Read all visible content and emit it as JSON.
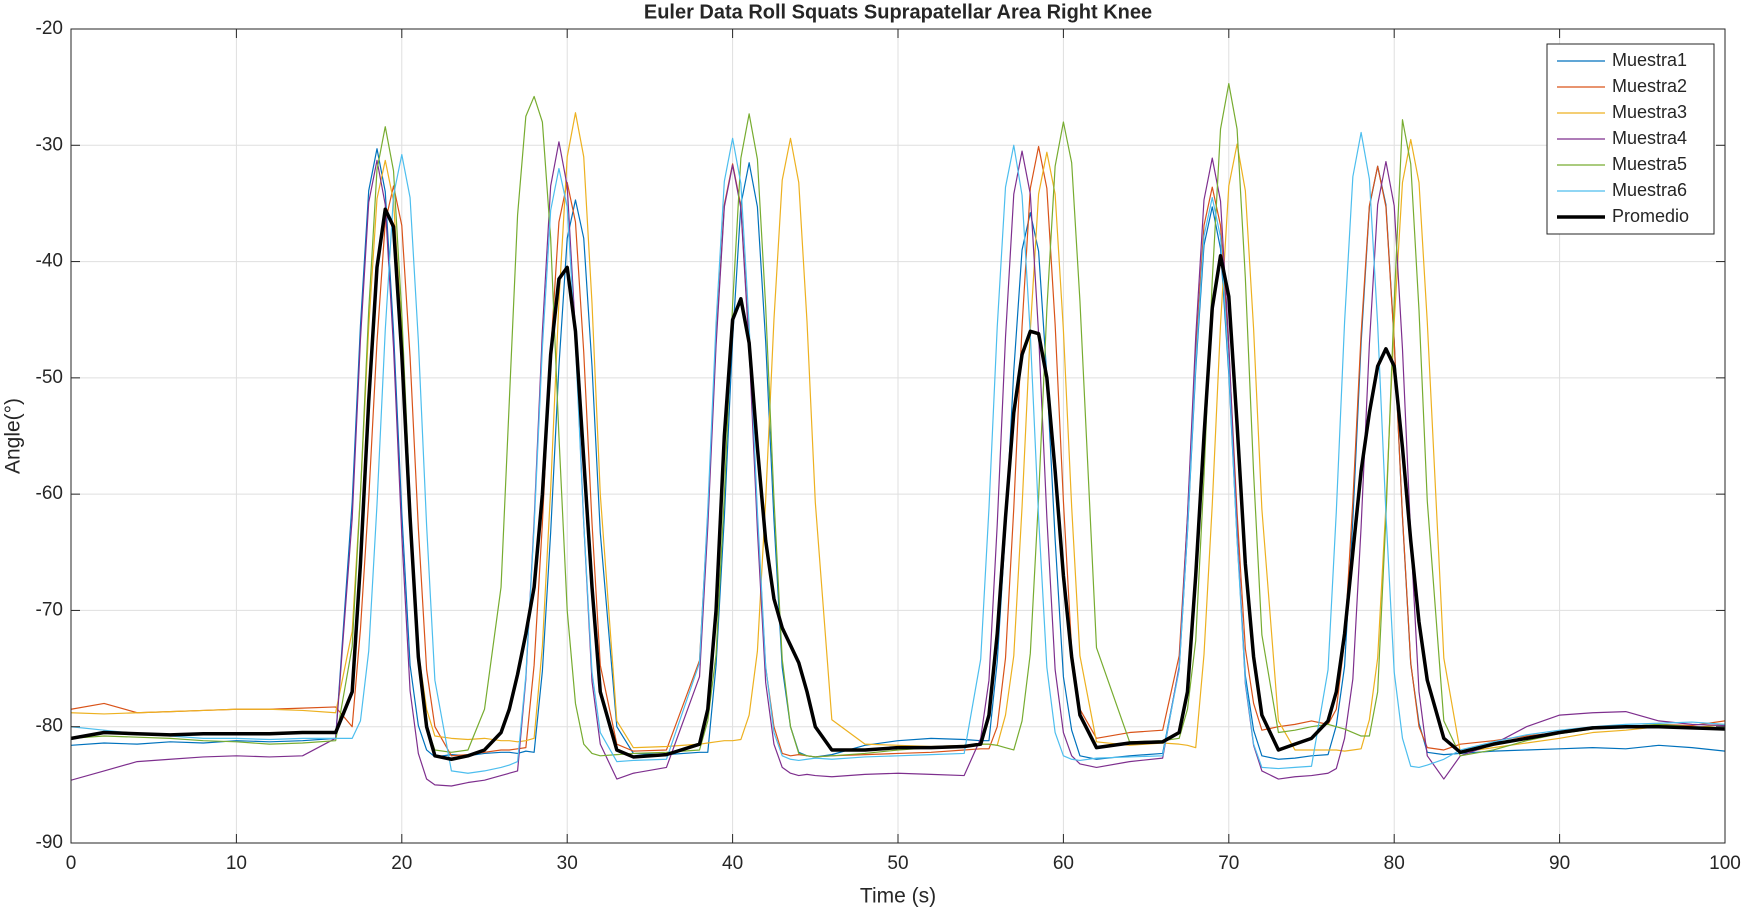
{
  "chart_data": {
    "type": "line",
    "title": "Euler Data Roll Squats Suprapatellar Area Right Knee",
    "x_label": "Time (s)",
    "y_label": "Angle(°)",
    "xlim": [
      0,
      100
    ],
    "ylim": [
      -90,
      -20
    ],
    "xticks": [
      0,
      10,
      20,
      30,
      40,
      50,
      60,
      70,
      80,
      90,
      100
    ],
    "yticks": [
      -90,
      -80,
      -70,
      -60,
      -50,
      -40,
      -30,
      -20
    ],
    "grid": true,
    "legend": "northeast",
    "x": [
      0,
      2,
      4,
      6,
      8,
      10,
      12,
      14,
      16,
      17,
      17.5,
      18,
      18.5,
      19,
      19.5,
      20,
      20.5,
      21,
      21.5,
      22,
      23,
      24,
      25,
      26,
      26.5,
      27,
      27.5,
      28,
      28.5,
      29,
      29.5,
      30,
      30.5,
      31,
      31.5,
      32,
      33,
      34,
      36,
      38,
      38.5,
      39,
      39.5,
      40,
      40.5,
      41,
      41.5,
      42,
      42.5,
      43,
      43.5,
      44,
      44.5,
      45,
      46,
      48,
      50,
      52,
      54,
      55,
      55.5,
      56,
      56.5,
      57,
      57.5,
      58,
      58.5,
      59,
      59.5,
      60,
      60.5,
      61,
      62,
      64,
      66,
      67,
      67.5,
      68,
      68.5,
      69,
      69.5,
      70,
      70.5,
      71,
      71.5,
      72,
      73,
      74,
      75,
      76,
      76.5,
      77,
      77.5,
      78,
      78.5,
      79,
      79.5,
      80,
      80.5,
      81,
      81.5,
      82,
      83,
      84,
      86,
      88,
      90,
      92,
      94,
      96,
      98,
      100
    ],
    "series": [
      {
        "name": "Muestra1",
        "color": "#0072bd",
        "line_width": 1.2,
        "values": [
          -81.6,
          -81.4,
          -81.5,
          -81.3,
          -81.4,
          -81.2,
          -81.3,
          -81.2,
          -81.0,
          -60.7,
          -45.5,
          -33.9,
          -30.3,
          -34.0,
          -46.0,
          -61.6,
          -74.7,
          -79.9,
          -82.0,
          -82.6,
          -82.4,
          -82.5,
          -82.3,
          -82.2,
          -82.2,
          -82.3,
          -82.1,
          -82.2,
          -75.2,
          -63.3,
          -49.0,
          -38.0,
          -34.7,
          -38.0,
          -49.0,
          -63.3,
          -80.0,
          -82.3,
          -82.4,
          -82.2,
          -82.2,
          -74.7,
          -62.0,
          -46.7,
          -35.1,
          -31.5,
          -35.3,
          -46.9,
          -62.2,
          -74.9,
          -80.0,
          -82.2,
          -82.5,
          -82.6,
          -82.4,
          -81.6,
          -81.2,
          -81.0,
          -81.1,
          -81.2,
          -81.2,
          -74.4,
          -63.0,
          -49.4,
          -39.0,
          -35.8,
          -39.1,
          -49.9,
          -63.9,
          -75.7,
          -80.3,
          -82.5,
          -82.8,
          -82.5,
          -82.3,
          -75.0,
          -63.3,
          -49.3,
          -38.6,
          -35.3,
          -38.9,
          -49.7,
          -63.8,
          -75.6,
          -80.3,
          -82.5,
          -82.8,
          -82.7,
          -82.5,
          -82.4,
          -79.9,
          -74.8,
          -62.2,
          -47.0,
          -35.3,
          -31.8,
          -35.1,
          -46.8,
          -62.0,
          -74.6,
          -79.7,
          -82.2,
          -82.4,
          -82.3,
          -82.1,
          -82.0,
          -81.9,
          -81.8,
          -81.9,
          -81.6,
          -81.8,
          -82.1
        ]
      },
      {
        "name": "Muestra2",
        "color": "#d95319",
        "line_width": 1.2,
        "values": [
          -78.5,
          -78.0,
          -78.8,
          -78.7,
          -78.6,
          -78.5,
          -78.5,
          -78.4,
          -78.3,
          -80.0,
          -71.6,
          -60.4,
          -46.9,
          -36.6,
          -33.5,
          -36.9,
          -48.2,
          -62.9,
          -75.1,
          -80.0,
          -82.5,
          -82.4,
          -82.2,
          -82.0,
          -82.0,
          -81.9,
          -81.8,
          -74.7,
          -62.5,
          -47.8,
          -36.6,
          -33.2,
          -36.6,
          -47.8,
          -62.5,
          -74.7,
          -81.5,
          -82.1,
          -82.0,
          -74.3,
          -61.7,
          -46.7,
          -35.1,
          -31.6,
          -35.2,
          -46.9,
          -62.1,
          -74.9,
          -80.0,
          -82.3,
          -82.5,
          -82.4,
          -82.5,
          -82.6,
          -82.5,
          -82.4,
          -82.3,
          -82.2,
          -82.0,
          -81.9,
          -81.9,
          -80.0,
          -74.1,
          -61.2,
          -45.6,
          -33.7,
          -30.1,
          -33.7,
          -45.4,
          -60.6,
          -73.4,
          -78.5,
          -81.0,
          -80.5,
          -80.3,
          -73.9,
          -62.0,
          -47.8,
          -36.9,
          -33.6,
          -36.9,
          -47.6,
          -61.6,
          -73.3,
          -78.0,
          -80.3,
          -80.0,
          -79.8,
          -79.5,
          -79.8,
          -78.5,
          -72.6,
          -60.6,
          -46.2,
          -35.2,
          -31.8,
          -35.3,
          -46.9,
          -61.9,
          -74.5,
          -80.0,
          -81.8,
          -82.0,
          -81.5,
          -81.2,
          -80.8,
          -80.5,
          -80.2,
          -80.0,
          -79.8,
          -79.9,
          -79.5
        ]
      },
      {
        "name": "Muestra3",
        "color": "#edb120",
        "line_width": 1.2,
        "values": [
          -78.8,
          -78.9,
          -78.8,
          -78.7,
          -78.6,
          -78.5,
          -78.5,
          -78.6,
          -78.8,
          -71.8,
          -59.9,
          -45.6,
          -34.6,
          -31.3,
          -34.8,
          -46.2,
          -61.1,
          -73.5,
          -78.5,
          -80.8,
          -81.0,
          -81.1,
          -81.0,
          -81.2,
          -81.2,
          -81.3,
          -81.2,
          -81.0,
          -73.1,
          -59.6,
          -43.4,
          -31.0,
          -27.2,
          -31.0,
          -43.6,
          -60.0,
          -79.5,
          -81.8,
          -81.7,
          -81.5,
          -81.4,
          -81.3,
          -81.2,
          -81.2,
          -81.1,
          -79.0,
          -73.5,
          -60.5,
          -45.0,
          -33.0,
          -29.4,
          -33.2,
          -45.2,
          -60.7,
          -79.4,
          -81.5,
          -81.6,
          -81.7,
          -81.6,
          -81.5,
          -81.5,
          -81.6,
          -79.0,
          -73.9,
          -61.1,
          -45.9,
          -34.2,
          -30.6,
          -34.2,
          -45.9,
          -61.1,
          -73.9,
          -81.3,
          -81.6,
          -81.4,
          -81.5,
          -81.6,
          -81.8,
          -73.8,
          -60.9,
          -45.4,
          -33.5,
          -29.9,
          -33.9,
          -45.8,
          -61.3,
          -79.5,
          -82.0,
          -82.0,
          -82.0,
          -82.0,
          -82.1,
          -82.0,
          -81.9,
          -79.4,
          -74.1,
          -61.0,
          -45.2,
          -33.2,
          -29.5,
          -33.2,
          -45.2,
          -74.1,
          -82.2,
          -81.8,
          -81.4,
          -81.0,
          -80.5,
          -80.3,
          -80.0,
          -80.1,
          -79.8
        ]
      },
      {
        "name": "Muestra4",
        "color": "#7e2f8e",
        "line_width": 1.2,
        "values": [
          -84.6,
          -83.8,
          -83.0,
          -82.8,
          -82.6,
          -82.5,
          -82.6,
          -82.5,
          -81.0,
          -62.1,
          -46.7,
          -34.9,
          -31.3,
          -35.1,
          -47.4,
          -63.5,
          -76.9,
          -82.3,
          -84.5,
          -85.0,
          -85.1,
          -84.8,
          -84.6,
          -84.2,
          -84.0,
          -83.8,
          -75.9,
          -62.3,
          -46.0,
          -33.5,
          -29.7,
          -33.5,
          -46.1,
          -62.5,
          -76.1,
          -81.5,
          -84.5,
          -84.0,
          -83.5,
          -75.7,
          -62.8,
          -47.2,
          -35.3,
          -31.7,
          -35.4,
          -47.4,
          -63.1,
          -76.2,
          -81.5,
          -83.5,
          -84.0,
          -84.2,
          -84.1,
          -84.2,
          -84.3,
          -84.1,
          -84.0,
          -84.1,
          -84.2,
          -81.0,
          -76.0,
          -62.6,
          -46.5,
          -34.2,
          -30.5,
          -34.2,
          -46.2,
          -62.0,
          -75.1,
          -80.5,
          -82.5,
          -83.2,
          -83.5,
          -83.0,
          -82.7,
          -74.8,
          -61.9,
          -46.5,
          -34.7,
          -31.1,
          -34.8,
          -47.1,
          -63.0,
          -76.3,
          -81.6,
          -83.8,
          -84.5,
          -84.3,
          -84.2,
          -84.0,
          -83.6,
          -81.0,
          -75.9,
          -62.8,
          -47.1,
          -35.1,
          -31.4,
          -35.2,
          -47.5,
          -63.6,
          -77.0,
          -82.5,
          -84.5,
          -82.5,
          -81.5,
          -80.0,
          -79.0,
          -78.8,
          -78.7,
          -79.5,
          -79.8,
          -79.9
        ]
      },
      {
        "name": "Muestra5",
        "color": "#77ac30",
        "line_width": 1.2,
        "values": [
          -81.0,
          -80.8,
          -80.9,
          -81.0,
          -81.2,
          -81.3,
          -81.5,
          -81.4,
          -81.2,
          -73.1,
          -60.0,
          -44.2,
          -32.1,
          -28.4,
          -32.2,
          -44.5,
          -60.6,
          -74.0,
          -80.0,
          -82.0,
          -82.2,
          -82.0,
          -78.5,
          -68.0,
          -52.0,
          -36.0,
          -27.5,
          -25.8,
          -28.0,
          -38.0,
          -55.0,
          -70.0,
          -78.0,
          -81.5,
          -82.3,
          -82.5,
          -82.4,
          -82.3,
          -82.2,
          -82.0,
          -79.5,
          -73.8,
          -60.1,
          -43.7,
          -31.1,
          -27.3,
          -31.2,
          -43.9,
          -60.4,
          -74.2,
          -80.0,
          -82.3,
          -82.5,
          -82.6,
          -82.5,
          -82.3,
          -82.0,
          -81.8,
          -81.6,
          -81.5,
          -81.5,
          -81.6,
          -81.8,
          -82.0,
          -79.5,
          -73.7,
          -60.3,
          -44.1,
          -31.8,
          -28.0,
          -31.5,
          -43.4,
          -73.2,
          -81.3,
          -81.2,
          -81.0,
          -78.5,
          -72.6,
          -58.5,
          -41.6,
          -28.6,
          -24.7,
          -28.6,
          -41.4,
          -58.2,
          -72.1,
          -80.5,
          -80.3,
          -80.0,
          -79.8,
          -80.0,
          -80.2,
          -80.5,
          -80.8,
          -80.8,
          -77.0,
          -62.0,
          -43.5,
          -27.8,
          -31.6,
          -44.2,
          -60.6,
          -79.5,
          -82.5,
          -82.0,
          -81.2,
          -80.6,
          -80.2,
          -80.0,
          -79.8,
          -80.0,
          -80.1
        ]
      },
      {
        "name": "Muestra6",
        "color": "#4dbeee",
        "line_width": 1.2,
        "values": [
          -80.0,
          -80.3,
          -80.6,
          -80.8,
          -81.0,
          -81.0,
          -81.1,
          -81.0,
          -81.0,
          -81.0,
          -79.5,
          -73.5,
          -60.9,
          -45.9,
          -34.3,
          -30.8,
          -34.5,
          -46.8,
          -62.7,
          -76.0,
          -83.8,
          -84.0,
          -83.8,
          -83.5,
          -83.3,
          -83.0,
          -75.6,
          -62.8,
          -47.4,
          -35.6,
          -32.0,
          -35.3,
          -47.1,
          -62.5,
          -75.3,
          -80.5,
          -83.0,
          -82.9,
          -82.8,
          -74.5,
          -61.3,
          -45.3,
          -33.1,
          -29.4,
          -33.3,
          -45.5,
          -61.5,
          -74.8,
          -80.5,
          -82.5,
          -82.8,
          -82.9,
          -82.8,
          -82.7,
          -82.8,
          -82.6,
          -82.5,
          -82.4,
          -82.3,
          -74.2,
          -61.2,
          -45.6,
          -33.6,
          -30.0,
          -34.3,
          -46.3,
          -62.0,
          -74.9,
          -80.5,
          -82.5,
          -82.8,
          -82.9,
          -82.7,
          -82.6,
          -82.5,
          -75.1,
          -63.2,
          -48.8,
          -37.8,
          -34.5,
          -37.9,
          -49.2,
          -63.9,
          -76.1,
          -81.5,
          -83.5,
          -83.6,
          -83.5,
          -83.4,
          -75.1,
          -61.5,
          -45.2,
          -32.7,
          -28.9,
          -32.9,
          -45.4,
          -61.7,
          -75.3,
          -81.0,
          -83.4,
          -83.5,
          -83.3,
          -82.8,
          -82.0,
          -81.3,
          -80.7,
          -80.3,
          -80.0,
          -79.8,
          -79.7,
          -79.6,
          -79.8
        ]
      },
      {
        "name": "Promedio",
        "color": "#000000",
        "line_width": 3.5,
        "values": [
          -81.0,
          -80.5,
          -80.6,
          -80.7,
          -80.6,
          -80.6,
          -80.6,
          -80.5,
          -80.5,
          -77.0,
          -66.0,
          -52.0,
          -40.5,
          -35.5,
          -37.0,
          -48.0,
          -62.0,
          -74.0,
          -80.0,
          -82.5,
          -82.8,
          -82.5,
          -82.0,
          -80.5,
          -78.5,
          -75.5,
          -72.0,
          -68.0,
          -60.0,
          -48.0,
          -41.5,
          -40.5,
          -46.0,
          -57.0,
          -68.0,
          -77.0,
          -82.0,
          -82.6,
          -82.4,
          -81.5,
          -78.5,
          -70.0,
          -55.0,
          -45.0,
          -43.2,
          -47.0,
          -56.0,
          -64.0,
          -69.0,
          -71.5,
          -73.0,
          -74.5,
          -77.0,
          -80.0,
          -82.0,
          -82.0,
          -81.8,
          -81.8,
          -81.7,
          -81.5,
          -79.0,
          -72.0,
          -62.0,
          -53.0,
          -48.0,
          -46.0,
          -46.2,
          -50.0,
          -58.0,
          -67.0,
          -74.0,
          -79.0,
          -81.8,
          -81.4,
          -81.3,
          -80.5,
          -77.0,
          -67.0,
          -55.0,
          -44.0,
          -39.5,
          -43.0,
          -54.0,
          -66.0,
          -74.0,
          -79.0,
          -82.0,
          -81.5,
          -81.0,
          -79.5,
          -77.0,
          -72.0,
          -65.0,
          -58.0,
          -53.0,
          -49.0,
          -47.5,
          -49.0,
          -56.0,
          -64.0,
          -71.0,
          -76.0,
          -81.0,
          -82.2,
          -81.5,
          -81.0,
          -80.5,
          -80.1,
          -80.0,
          -80.0,
          -80.1,
          -80.2
        ]
      }
    ]
  }
}
